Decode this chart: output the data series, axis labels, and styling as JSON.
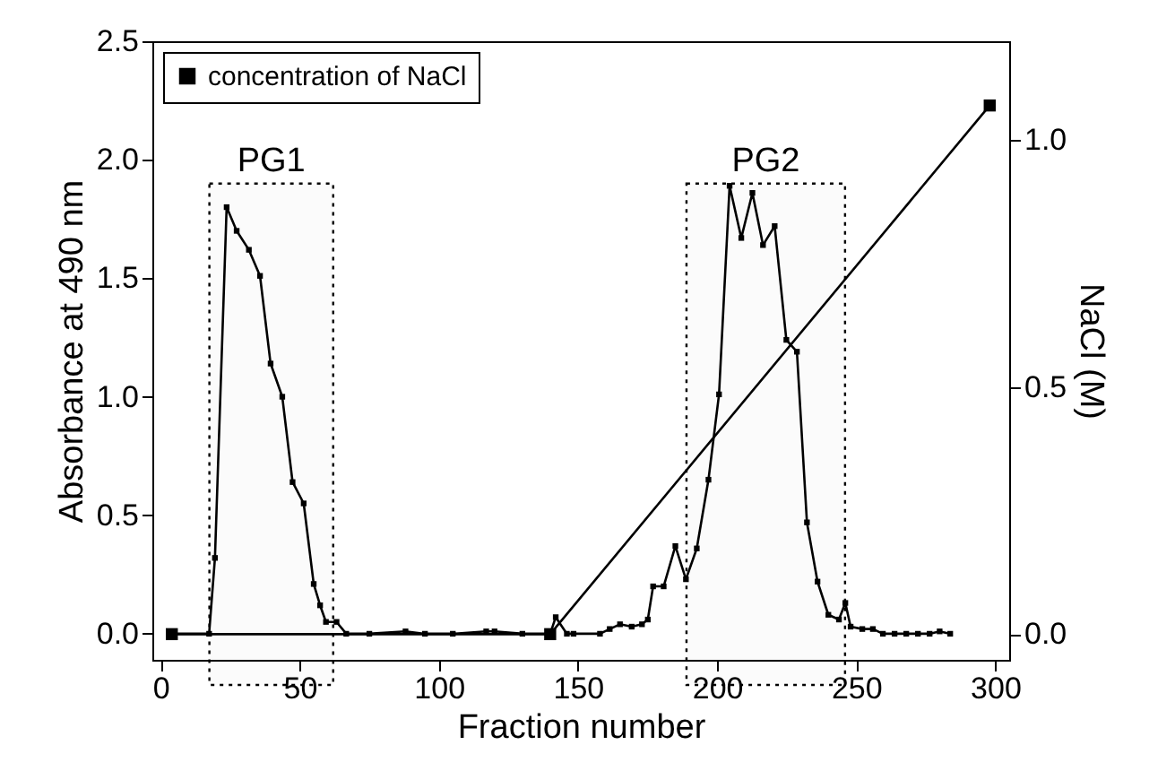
{
  "chart_data": {
    "type": "line",
    "xlabel": "Fraction number",
    "ylabel": "Absorbance at 490 nm",
    "y2label": "NaCl (M)",
    "xlim": [
      -3,
      305
    ],
    "xticks": [
      0,
      50,
      100,
      150,
      200,
      250,
      300
    ],
    "ylim": [
      -0.11,
      2.5
    ],
    "yticks": [
      {
        "value": 0,
        "label": "0.0"
      },
      {
        "value": 0.5,
        "label": "0.5"
      },
      {
        "value": 1,
        "label": "1.0"
      },
      {
        "value": 1.5,
        "label": "1.5"
      },
      {
        "value": 2,
        "label": "2.0"
      },
      {
        "value": 2.5,
        "label": "2.5"
      }
    ],
    "y2lim": [
      -0.052,
      1.2
    ],
    "y2ticks": [
      {
        "value": 0,
        "label": "0.0"
      },
      {
        "value": 0.5,
        "label": "0.5"
      },
      {
        "value": 1,
        "label": "1.0"
      }
    ],
    "legend": "top left",
    "grid": false,
    "bands": [
      {
        "axis": "x",
        "from": 17.5,
        "to": 62,
        "label": "PG1"
      },
      {
        "axis": "x",
        "from": 189,
        "to": 246,
        "label": "PG2"
      }
    ],
    "series": [
      {
        "color": "#000000",
        "marker": "square",
        "x": [
          4,
          17.4,
          19.5,
          23.7,
          27.3,
          31.7,
          35.7,
          39.5,
          43.7,
          47.4,
          51.4,
          55,
          57.3,
          59.4,
          63.2,
          66.7,
          75,
          88,
          95,
          105,
          117,
          120,
          130,
          140,
          142,
          146,
          148.4,
          157.9,
          161.4,
          165.1,
          169.3,
          173,
          175.1,
          177,
          180.8,
          185,
          188.8,
          192.7,
          196.9,
          200.7,
          204.5,
          208.7,
          212.7,
          216.5,
          220.7,
          224.9,
          228.7,
          232.3,
          236.1,
          240,
          243.8,
          246.1,
          248,
          252.2,
          256,
          259.6,
          263.8,
          268,
          272.2,
          276.4,
          280,
          283.8
        ],
        "values": [
          0,
          0,
          0.32,
          1.8,
          1.7,
          1.62,
          1.51,
          1.14,
          1.0,
          0.64,
          0.55,
          0.21,
          0.12,
          0.05,
          0.05,
          0,
          0,
          0.01,
          0,
          0,
          0.01,
          0.01,
          0,
          0,
          0.07,
          0,
          0,
          0,
          0.02,
          0.04,
          0.03,
          0.04,
          0.06,
          0.2,
          0.2,
          0.37,
          0.23,
          0.36,
          0.65,
          1.01,
          1.89,
          1.67,
          1.86,
          1.64,
          1.72,
          1.24,
          1.19,
          0.47,
          0.22,
          0.08,
          0.06,
          0.13,
          0.03,
          0.02,
          0.02,
          0,
          0,
          0,
          0,
          0,
          0.01,
          0
        ]
      },
      {
        "name": "concentration of NaCl",
        "color": "#000000",
        "marker": "square",
        "axis": "y2",
        "x": [
          4,
          140,
          298
        ],
        "values": [
          0,
          0,
          1.07
        ]
      }
    ]
  }
}
